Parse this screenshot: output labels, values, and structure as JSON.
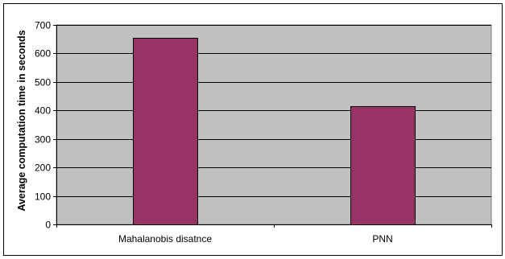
{
  "chart_data": {
    "type": "bar",
    "title": "",
    "xlabel": "",
    "ylabel": "Average computation time in seconds",
    "categories": [
      "Mahalanobis disatnce",
      "PNN"
    ],
    "values": [
      655,
      415
    ],
    "ylim": [
      0,
      700
    ],
    "yticks": [
      0,
      100,
      200,
      300,
      400,
      500,
      600,
      700
    ],
    "grid": true,
    "legend": "none",
    "colors": {
      "bar": "#993366",
      "bar_edge": "#000000",
      "plot_bg": "#c0c0c0",
      "grid": "#000000"
    }
  }
}
